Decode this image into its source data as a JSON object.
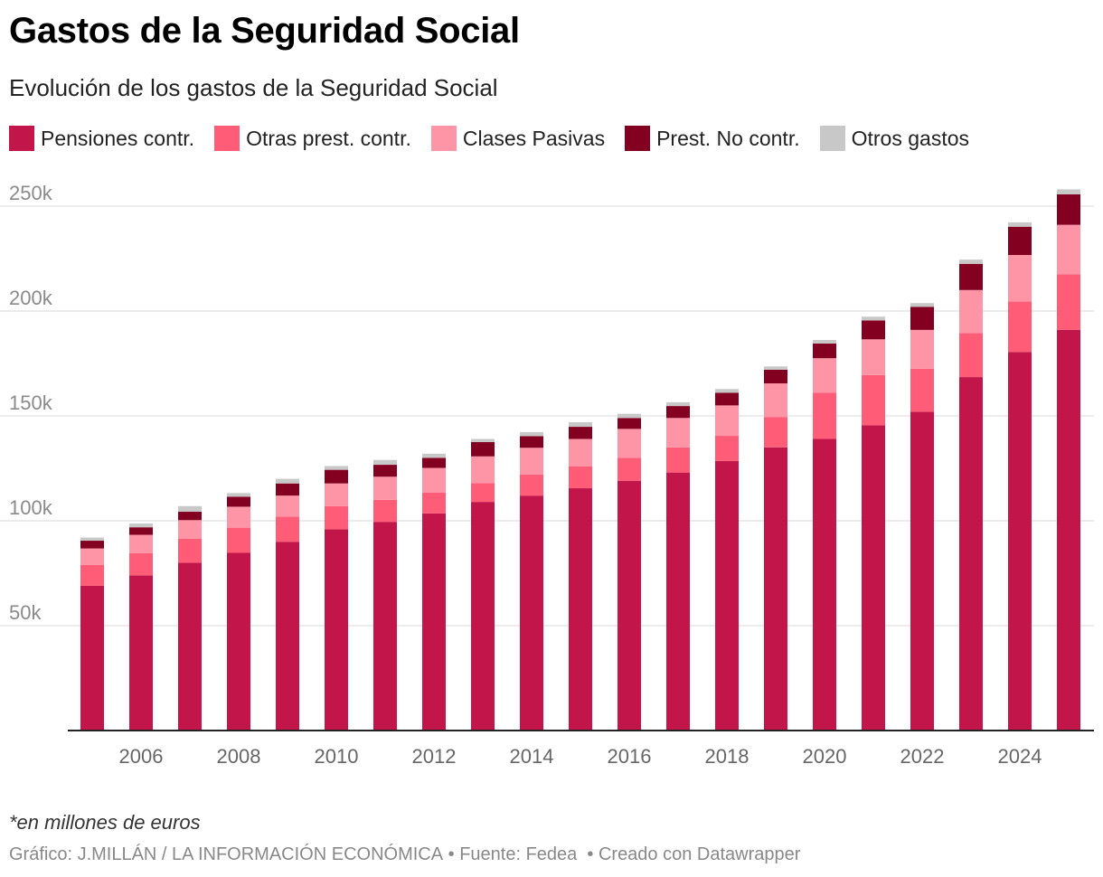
{
  "title": "Gastos de la Seguridad Social",
  "subtitle": "Evolución de los gastos de la Seguridad Social",
  "legend": [
    {
      "label": "Pensiones contr.",
      "color": "#c2164a"
    },
    {
      "label": "Otras prest. contr.",
      "color": "#fe5c77"
    },
    {
      "label": "Clases Pasivas",
      "color": "#fe95a6"
    },
    {
      "label": "Prest. No contr.",
      "color": "#840021"
    },
    {
      "label": "Otros gastos",
      "color": "#c8c8c8"
    }
  ],
  "note": "*en millones de euros",
  "footer": {
    "credit": "Gráfico: J.MILLÁN / LA INFORMACIÓN ECONÓMICA",
    "source": " • Fuente: Fedea ",
    "created": " • Creado con Datawrapper"
  },
  "chart_data": {
    "type": "bar",
    "stacked": true,
    "title": "Gastos de la Seguridad Social",
    "xlabel": "",
    "ylabel": "",
    "ylim": [
      0,
      260000
    ],
    "yticks": [
      50000,
      100000,
      150000,
      200000,
      250000
    ],
    "ytick_labels": [
      "50k",
      "100k",
      "150k",
      "200k",
      "250k"
    ],
    "categories": [
      "2005",
      "2006",
      "2007",
      "2008",
      "2009",
      "2010",
      "2011",
      "2012",
      "2013",
      "2014",
      "2015",
      "2016",
      "2017",
      "2018",
      "2019",
      "2020",
      "2021",
      "2022",
      "2023",
      "2024",
      "2025"
    ],
    "xtick_labels": [
      "2006",
      "2008",
      "2010",
      "2012",
      "2014",
      "2016",
      "2018",
      "2020",
      "2022",
      "2024"
    ],
    "series": [
      {
        "name": "Pensiones contr.",
        "color": "#c2164a",
        "values": [
          69000,
          74000,
          80000,
          84700,
          90000,
          96000,
          99500,
          103500,
          109000,
          112000,
          115500,
          119000,
          123000,
          128500,
          135000,
          139000,
          145500,
          152000,
          168500,
          180500,
          191000
        ]
      },
      {
        "name": "Otras prest. contr.",
        "color": "#fe5c77",
        "values": [
          10000,
          10500,
          11500,
          12000,
          12000,
          11000,
          10500,
          10000,
          9000,
          10000,
          10500,
          11000,
          12000,
          12000,
          14500,
          22000,
          24000,
          20500,
          21000,
          24000,
          26500
        ]
      },
      {
        "name": "Clases Pasivas",
        "color": "#fe95a6",
        "values": [
          7800,
          8800,
          8800,
          10000,
          10000,
          10800,
          11000,
          11700,
          12700,
          12800,
          13000,
          13800,
          14000,
          14500,
          16000,
          16500,
          17000,
          18500,
          20500,
          22200,
          23600
        ]
      },
      {
        "name": "Prest. No contr.",
        "color": "#840021",
        "values": [
          3700,
          3600,
          4000,
          4800,
          5800,
          6500,
          5700,
          4800,
          6800,
          5500,
          5800,
          5200,
          5700,
          6000,
          6500,
          7000,
          9000,
          11000,
          12500,
          13500,
          14500
        ]
      },
      {
        "name": "Otros gastos",
        "color": "#c8c8c8",
        "values": [
          1500,
          1800,
          2700,
          1700,
          2200,
          1800,
          2300,
          2000,
          1500,
          2000,
          2200,
          2000,
          1800,
          1800,
          1600,
          1700,
          1800,
          1800,
          2000,
          2100,
          2400
        ]
      }
    ]
  }
}
